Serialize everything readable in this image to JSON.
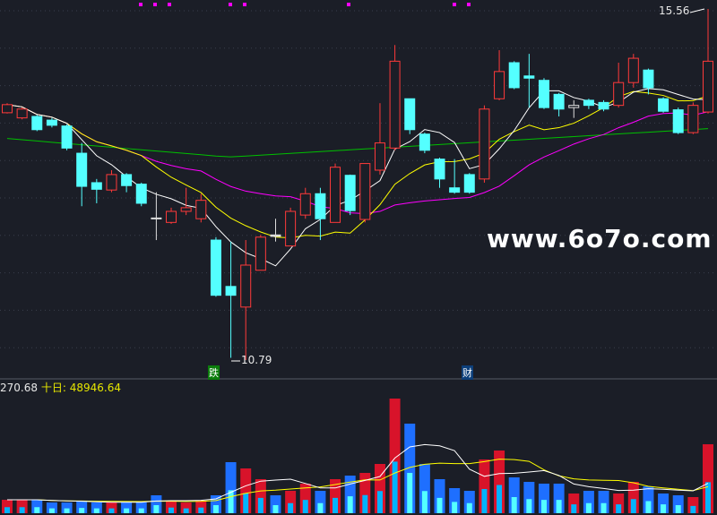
{
  "chart_data": {
    "type": "candlestick",
    "price_high_label": "15.56",
    "price_low_label": "10.79",
    "signals": [
      {
        "index": 13,
        "text": "跌",
        "color": "#0b7d0b"
      },
      {
        "index": 30,
        "text": "财",
        "color": "#0d3f7a"
      }
    ],
    "candles": [
      {
        "o": 14.15,
        "c": 14.26,
        "h": 14.28,
        "l": 14.14
      },
      {
        "o": 14.08,
        "c": 14.2,
        "h": 14.22,
        "l": 14.06
      },
      {
        "o": 14.1,
        "c": 13.92,
        "h": 14.12,
        "l": 13.9
      },
      {
        "o": 14.05,
        "c": 13.98,
        "h": 14.08,
        "l": 13.95
      },
      {
        "o": 13.97,
        "c": 13.67,
        "h": 13.99,
        "l": 13.64
      },
      {
        "o": 13.6,
        "c": 13.15,
        "h": 13.74,
        "l": 12.88
      },
      {
        "o": 13.2,
        "c": 13.11,
        "h": 13.25,
        "l": 12.92
      },
      {
        "o": 13.1,
        "c": 13.31,
        "h": 13.37,
        "l": 13.07
      },
      {
        "o": 13.31,
        "c": 13.16,
        "h": 13.33,
        "l": 13.07
      },
      {
        "o": 13.18,
        "c": 12.92,
        "h": 13.2,
        "l": 12.88
      },
      {
        "o": 12.72,
        "c": 12.71,
        "h": 13.07,
        "l": 12.42
      },
      {
        "o": 12.66,
        "c": 12.81,
        "h": 12.86,
        "l": 12.64
      },
      {
        "o": 12.81,
        "c": 12.86,
        "h": 13.13,
        "l": 12.76
      },
      {
        "o": 12.71,
        "c": 12.96,
        "h": 13.05,
        "l": 12.66
      },
      {
        "o": 12.42,
        "c": 11.67,
        "h": 12.46,
        "l": 11.65
      },
      {
        "o": 11.79,
        "c": 11.67,
        "h": 12.4,
        "l": 10.82
      },
      {
        "o": 11.51,
        "c": 12.08,
        "h": 12.42,
        "l": 10.79
      },
      {
        "o": 12.01,
        "c": 12.46,
        "h": 12.49,
        "l": 12.01
      },
      {
        "o": 12.49,
        "c": 12.47,
        "h": 12.71,
        "l": 12.4
      },
      {
        "o": 12.34,
        "c": 12.81,
        "h": 12.86,
        "l": 12.34
      },
      {
        "o": 12.76,
        "c": 13.05,
        "h": 13.13,
        "l": 12.71
      },
      {
        "o": 13.05,
        "c": 12.71,
        "h": 13.13,
        "l": 12.42
      },
      {
        "o": 12.66,
        "c": 13.41,
        "h": 13.46,
        "l": 12.66
      },
      {
        "o": 13.3,
        "c": 12.82,
        "h": 13.31,
        "l": 12.76
      },
      {
        "o": 12.7,
        "c": 13.46,
        "h": 13.46,
        "l": 12.66
      },
      {
        "o": 13.37,
        "c": 13.74,
        "h": 14.28,
        "l": 13.31
      },
      {
        "o": 13.67,
        "c": 14.85,
        "h": 15.07,
        "l": 13.64
      },
      {
        "o": 14.34,
        "c": 13.92,
        "h": 14.34,
        "l": 13.86
      },
      {
        "o": 13.86,
        "c": 13.64,
        "h": 13.88,
        "l": 13.6
      },
      {
        "o": 13.52,
        "c": 13.25,
        "h": 13.54,
        "l": 13.13
      },
      {
        "o": 13.13,
        "c": 13.07,
        "h": 13.52,
        "l": 13.05
      },
      {
        "o": 13.31,
        "c": 13.07,
        "h": 13.33,
        "l": 13.05
      },
      {
        "o": 13.25,
        "c": 14.2,
        "h": 14.25,
        "l": 13.2
      },
      {
        "o": 14.34,
        "c": 14.71,
        "h": 15.0,
        "l": 14.32
      },
      {
        "o": 14.83,
        "c": 14.49,
        "h": 14.85,
        "l": 14.47
      },
      {
        "o": 14.65,
        "c": 14.62,
        "h": 14.95,
        "l": 14.22
      },
      {
        "o": 14.59,
        "c": 14.22,
        "h": 14.62,
        "l": 14.2
      },
      {
        "o": 14.4,
        "c": 14.2,
        "h": 14.42,
        "l": 14.1
      },
      {
        "o": 14.22,
        "c": 14.25,
        "h": 14.32,
        "l": 14.08
      },
      {
        "o": 14.32,
        "c": 14.25,
        "h": 14.34,
        "l": 14.2
      },
      {
        "o": 14.29,
        "c": 14.2,
        "h": 14.32,
        "l": 14.17
      },
      {
        "o": 14.25,
        "c": 14.56,
        "h": 14.83,
        "l": 14.22
      },
      {
        "o": 14.56,
        "c": 14.89,
        "h": 14.95,
        "l": 14.49
      },
      {
        "o": 14.73,
        "c": 14.49,
        "h": 14.75,
        "l": 14.4
      },
      {
        "o": 14.34,
        "c": 14.17,
        "h": 14.36,
        "l": 14.15
      },
      {
        "o": 14.19,
        "c": 13.88,
        "h": 14.22,
        "l": 13.86
      },
      {
        "o": 13.88,
        "c": 14.25,
        "h": 14.29,
        "l": 13.86
      },
      {
        "o": 14.16,
        "c": 14.85,
        "h": 15.56,
        "l": 14.14
      }
    ],
    "volumes": [
      29400,
      29400,
      29400,
      23500,
      23500,
      25500,
      23500,
      23500,
      23500,
      23500,
      39200,
      27400,
      23500,
      27400,
      39200,
      111700,
      98000,
      74500,
      39200,
      49000,
      64700,
      49000,
      74500,
      82300,
      88200,
      107800,
      250900,
      196000,
      107800,
      74500,
      54900,
      49000,
      117600,
      137200,
      78400,
      68600,
      64700,
      64700,
      43100,
      49000,
      49000,
      43100,
      68600,
      58800,
      43100,
      39200,
      35300,
      150900
    ],
    "volume_ma_labels": {
      "ma5_value": "270.68",
      "ma10_name": "十日:",
      "ma10_value": "48946.64"
    },
    "colors": {
      "up": "#ff3a3a",
      "down": "#54ffff",
      "ma5": "#ffffff",
      "ma10": "#ffff00",
      "ma20": "#ff00ff",
      "ma60": "#00c000",
      "background": "#1b1e27",
      "grid": "#3a3f4c"
    }
  },
  "watermark": "www.6o7o.com"
}
